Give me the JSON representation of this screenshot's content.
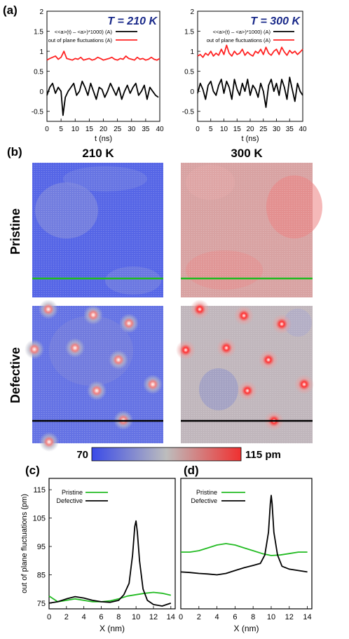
{
  "panels": {
    "a": "(a)",
    "b": "(b)",
    "c": "(c)",
    "d": "(d)"
  },
  "colors": {
    "red": "#ff2222",
    "black": "#000000",
    "green": "#22bb22",
    "temp_title": "#1a2a8a",
    "cold": "#4a5ae8",
    "mid": "#b8b8b8",
    "hot": "#f04848"
  },
  "maps": {
    "col_labels": [
      "210 K",
      "300 K"
    ],
    "row_labels": [
      "Pristine",
      "Defective"
    ],
    "colorbar": {
      "min_label": "70",
      "max_label": "115 pm"
    }
  },
  "chart_data": [
    {
      "type": "line",
      "title": "T = 210 K",
      "xlabel": "t (ns)",
      "xlim": [
        0,
        40
      ],
      "ylim": [
        -0.75,
        2
      ],
      "xticks": [
        "0",
        "5",
        "10",
        "15",
        "20",
        "25",
        "30",
        "35",
        "40"
      ],
      "yticks": [
        "-0.5",
        "0",
        "0.5",
        "1",
        "1.5",
        "2"
      ],
      "legend": "top-right",
      "series": [
        {
          "name": "<<a>(t) – <a>)*1000) (A)",
          "color": "#000000",
          "x": [
            0,
            1,
            2,
            3,
            4,
            5,
            5.7,
            6.5,
            7.5,
            8.5,
            9.5,
            10.5,
            11.5,
            12.5,
            13.5,
            14.5,
            15.5,
            16.5,
            17.5,
            18.5,
            19.5,
            20.5,
            21.5,
            22.5,
            23.5,
            24.5,
            25.5,
            26.5,
            27.5,
            28.5,
            29.5,
            30.5,
            31.5,
            32.5,
            33.5,
            34.5,
            35.5,
            36.5,
            37.5,
            38.5,
            39.5
          ],
          "y": [
            -0.1,
            0.1,
            0.2,
            -0.05,
            0.1,
            0.0,
            -0.6,
            -0.15,
            0.0,
            0.1,
            0.2,
            -0.1,
            0.0,
            0.25,
            0.1,
            -0.1,
            0.2,
            0.0,
            -0.2,
            0.1,
            0.05,
            -0.15,
            0.0,
            0.2,
            0.05,
            -0.1,
            0.1,
            -0.2,
            0.0,
            0.15,
            -0.05,
            0.1,
            0.2,
            -0.1,
            0.0,
            0.15,
            -0.2,
            0.1,
            0.0,
            -0.1,
            -0.15
          ]
        },
        {
          "name": "out of plane fluctuations (A)",
          "color": "#ff2222",
          "x": [
            0,
            1,
            2,
            3,
            4,
            5,
            6,
            7,
            8,
            9,
            10,
            11,
            12,
            13,
            14,
            15,
            16,
            17,
            18,
            19,
            20,
            21,
            22,
            23,
            24,
            25,
            26,
            27,
            28,
            29,
            30,
            31,
            32,
            33,
            34,
            35,
            36,
            37,
            38,
            39,
            40
          ],
          "y": [
            0.78,
            0.82,
            0.85,
            0.88,
            0.8,
            0.85,
            1.0,
            0.82,
            0.8,
            0.78,
            0.82,
            0.8,
            0.85,
            0.78,
            0.8,
            0.82,
            0.78,
            0.8,
            0.85,
            0.82,
            0.78,
            0.8,
            0.82,
            0.85,
            0.8,
            0.78,
            0.82,
            0.8,
            0.88,
            0.82,
            0.8,
            0.78,
            0.85,
            0.8,
            0.82,
            0.78,
            0.8,
            0.85,
            0.8,
            0.78,
            0.82
          ]
        }
      ]
    },
    {
      "type": "line",
      "title": "T = 300 K",
      "xlabel": "t (ns)",
      "xlim": [
        0,
        40
      ],
      "ylim": [
        -0.75,
        2
      ],
      "xticks": [
        "0",
        "5",
        "10",
        "15",
        "20",
        "25",
        "30",
        "35",
        "40"
      ],
      "yticks": [
        "-0.5",
        "0",
        "0.5",
        "1",
        "1.5",
        "2"
      ],
      "legend": "top-right",
      "series": [
        {
          "name": "<<a>(t) – <a>)*1000) (A)",
          "color": "#000000",
          "x": [
            0,
            1,
            2,
            3,
            4,
            5,
            6,
            7,
            8,
            9,
            10,
            11,
            12,
            13,
            14,
            15,
            16,
            17,
            18,
            19,
            20,
            21,
            22,
            23,
            24,
            25,
            26,
            27,
            28,
            29,
            30,
            31,
            32,
            33,
            34,
            35,
            36,
            37,
            38,
            39,
            40
          ],
          "y": [
            -0.05,
            0.2,
            0.05,
            -0.2,
            0.15,
            0.25,
            0.0,
            -0.1,
            0.15,
            0.3,
            -0.05,
            0.25,
            0.1,
            -0.2,
            0.3,
            0.05,
            -0.1,
            0.2,
            0.0,
            0.3,
            -0.1,
            0.15,
            0.05,
            -0.15,
            0.2,
            0.0,
            -0.4,
            0.15,
            0.3,
            0.0,
            0.2,
            -0.1,
            0.3,
            0.1,
            -0.2,
            0.35,
            0.05,
            -0.25,
            0.2,
            0.0,
            -0.1
          ]
        },
        {
          "name": "out of plane fluctuations (A)",
          "color": "#ff2222",
          "x": [
            0,
            1,
            2,
            3,
            4,
            5,
            6,
            7,
            8,
            9,
            10,
            11,
            12,
            13,
            14,
            15,
            16,
            17,
            18,
            19,
            20,
            21,
            22,
            23,
            24,
            25,
            26,
            27,
            28,
            29,
            30,
            31,
            32,
            33,
            34,
            35,
            36,
            37,
            38,
            39,
            40
          ],
          "y": [
            0.88,
            0.92,
            0.85,
            0.95,
            0.9,
            1.0,
            0.88,
            0.95,
            0.9,
            1.05,
            0.92,
            1.15,
            0.95,
            0.88,
            1.0,
            0.92,
            0.95,
            1.05,
            0.9,
            0.98,
            0.92,
            0.88,
            1.0,
            0.95,
            1.05,
            0.92,
            1.1,
            0.95,
            0.9,
            1.0,
            1.05,
            0.92,
            1.1,
            0.98,
            0.9,
            1.02,
            0.95,
            1.0,
            0.92,
            0.98,
            1.05
          ]
        }
      ]
    },
    {
      "type": "line",
      "xlabel": "X (nm)",
      "ylabel": "out of plane fluctuations (pm)",
      "xlim": [
        0,
        14.5
      ],
      "ylim": [
        73,
        119
      ],
      "xticks": [
        "0",
        "2",
        "4",
        "6",
        "8",
        "10",
        "12",
        "14"
      ],
      "yticks": [
        "75",
        "85",
        "95",
        "105",
        "115"
      ],
      "legend": "top-left",
      "series": [
        {
          "name": "Pristine",
          "color": "#22bb22",
          "x": [
            0,
            1,
            2,
            3,
            4,
            5,
            6,
            7,
            8,
            9,
            10,
            11,
            12,
            13,
            14
          ],
          "y": [
            77.5,
            75.5,
            76,
            76.5,
            76,
            75.5,
            75.5,
            75.8,
            76.5,
            77.5,
            78,
            78.5,
            78.8,
            78.5,
            77.8
          ]
        },
        {
          "name": "Defective",
          "color": "#000000",
          "x": [
            0,
            1,
            2,
            3,
            4,
            5,
            6,
            7,
            8,
            8.6,
            9.2,
            9.6,
            9.85,
            10,
            10.15,
            10.4,
            10.8,
            11.3,
            12,
            13,
            14
          ],
          "y": [
            75,
            75.5,
            76.5,
            77.3,
            76.8,
            76,
            75.5,
            75.3,
            76,
            78,
            82,
            92,
            102,
            104,
            100,
            90,
            80,
            76,
            74.5,
            74,
            75
          ]
        }
      ]
    },
    {
      "type": "line",
      "xlabel": "X (nm)",
      "xlim": [
        0,
        14.5
      ],
      "ylim": [
        73,
        119
      ],
      "xticks": [
        "0",
        "2",
        "4",
        "6",
        "8",
        "10",
        "12",
        "14"
      ],
      "legend": "top-left",
      "series": [
        {
          "name": "Pristine",
          "color": "#22bb22",
          "x": [
            0,
            1,
            2,
            3,
            4,
            5,
            6,
            7,
            8,
            9,
            10,
            11,
            12,
            13,
            14
          ],
          "y": [
            93,
            93,
            93.5,
            94.5,
            95.5,
            96,
            95.5,
            94.5,
            93.5,
            92.5,
            91.8,
            92,
            92.5,
            93,
            93
          ]
        },
        {
          "name": "Defective",
          "color": "#000000",
          "x": [
            0,
            1,
            2,
            3,
            4,
            5,
            6,
            7,
            8,
            8.8,
            9.3,
            9.7,
            9.9,
            10,
            10.1,
            10.3,
            10.7,
            11.2,
            12,
            13,
            14
          ],
          "y": [
            86,
            85.8,
            85.5,
            85.3,
            85,
            85.5,
            86.5,
            87.5,
            88.3,
            89,
            92,
            100,
            110,
            113,
            110,
            100,
            92,
            88,
            87,
            86.5,
            86
          ]
        }
      ]
    }
  ]
}
